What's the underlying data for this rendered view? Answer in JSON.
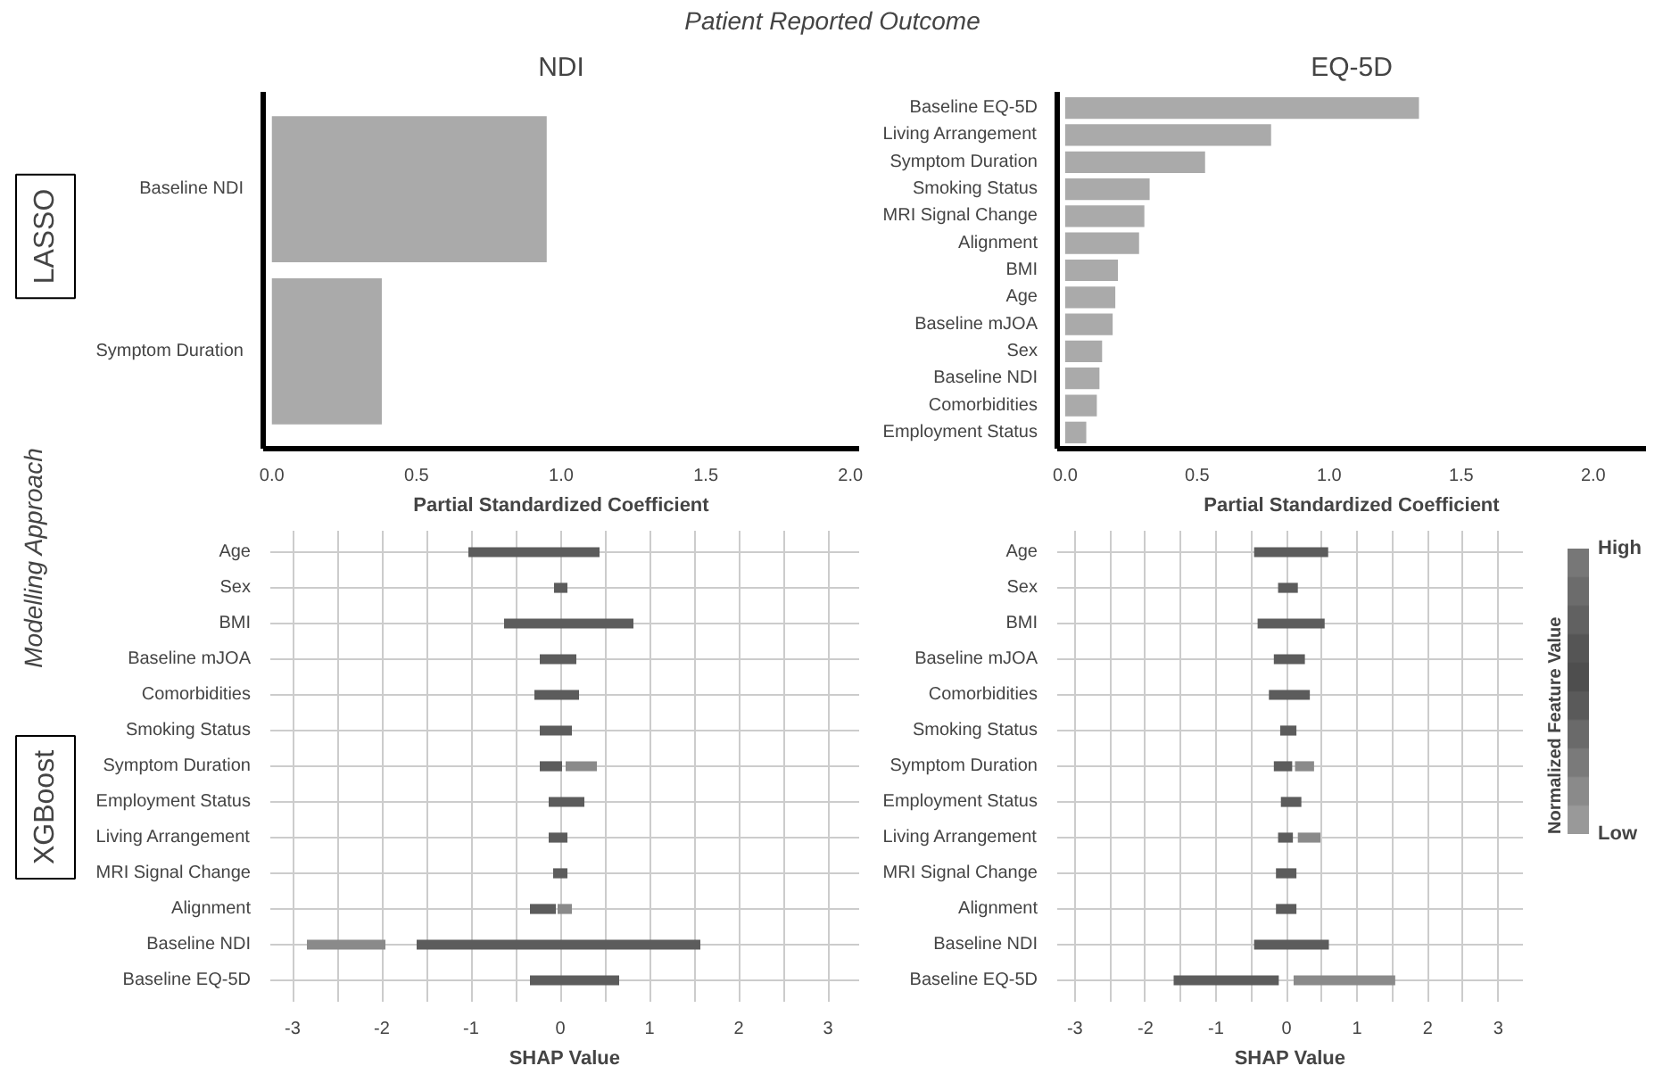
{
  "chart_data": [
    {
      "type": "bar",
      "orientation": "horizontal",
      "title": "NDI",
      "xlabel": "Partial Standardized Coefficient",
      "annotations": [
        "Patient Reported Outcome",
        "Modelling Approach",
        "LASSO"
      ],
      "categories": [
        "Baseline NDI",
        "Symptom Duration"
      ],
      "values": [
        0.95,
        0.38
      ],
      "color": "#aaaaaa",
      "xlim": [
        -0.03,
        2.03
      ],
      "xticks": [
        {
          "value": 0,
          "label": "0.0"
        },
        0.5,
        {
          "value": 1,
          "label": "1.0"
        },
        1.5,
        {
          "value": 2,
          "label": "2.0"
        }
      ],
      "grid": false
    },
    {
      "type": "bar",
      "orientation": "horizontal",
      "title": "EQ-5D",
      "xlabel": "Partial Standardized Coefficient",
      "categories": [
        "Baseline EQ-5D",
        "Living Arrangement",
        "Symptom Duration",
        "Smoking Status",
        "MRI Signal Change",
        "Alignment",
        "BMI",
        "Age",
        "Baseline mJOA",
        "Sex",
        "Baseline NDI",
        "Comorbidities",
        "Employment Status"
      ],
      "values": [
        1.34,
        0.78,
        0.53,
        0.32,
        0.3,
        0.28,
        0.2,
        0.19,
        0.18,
        0.14,
        0.13,
        0.12,
        0.08
      ],
      "color": "#aaaaaa",
      "xlim": [
        -0.03,
        2.2
      ],
      "xticks": [
        {
          "value": 0,
          "label": "0.0"
        },
        0.5,
        {
          "value": 1,
          "label": "1.0"
        },
        1.5,
        {
          "value": 2,
          "label": "2.0"
        }
      ],
      "grid": false
    },
    {
      "type": "bar",
      "orientation": "horizontal",
      "xlabel": "SHAP Value",
      "annotations": [
        "XGBoost"
      ],
      "categories": [
        "Age",
        "Sex",
        "BMI",
        "Baseline mJOA",
        "Comorbidities",
        "Smoking Status",
        "Symptom Duration",
        "Employment Status",
        "Living Arrangement",
        "MRI Signal Change",
        "Alignment",
        "Baseline NDI",
        "Baseline EQ-5D"
      ],
      "series": [
        {
          "color": "#5c5c5c",
          "base": [
            -1.03,
            -0.07,
            -0.63,
            -0.23,
            -0.29,
            -0.23,
            -0.23,
            -0.13,
            -0.13,
            -0.08,
            -0.34,
            -1.61,
            -0.34
          ],
          "values": [
            1.47,
            0.15,
            1.45,
            0.41,
            0.5,
            0.36,
            0.25,
            0.4,
            0.21,
            0.16,
            0.29,
            3.18,
            1.0
          ]
        },
        {
          "color": "#8a8a8a",
          "base": [
            null,
            null,
            null,
            null,
            null,
            null,
            0.06,
            null,
            null,
            null,
            -0.03,
            -2.84,
            null
          ],
          "values": [
            null,
            null,
            null,
            null,
            null,
            null,
            0.35,
            null,
            null,
            null,
            0.16,
            0.88,
            null
          ]
        }
      ],
      "xlim": [
        -3.25,
        3.35
      ],
      "xticks": [
        -3,
        {
          "value": -2.5,
          "label": null
        },
        -2,
        {
          "value": -1.5,
          "label": null
        },
        -1,
        {
          "value": -0.5,
          "label": null
        },
        0,
        {
          "value": 0.5,
          "label": null
        },
        1,
        {
          "value": 1.5,
          "label": null
        },
        2,
        {
          "value": 2.5,
          "label": null
        },
        3
      ],
      "grid": true
    },
    {
      "type": "bar",
      "orientation": "horizontal",
      "xlabel": "SHAP Value",
      "categories": [
        "Age",
        "Sex",
        "BMI",
        "Baseline mJOA",
        "Comorbidities",
        "Smoking Status",
        "Symptom Duration",
        "Employment Status",
        "Living Arrangement",
        "MRI Signal Change",
        "Alignment",
        "Baseline NDI",
        "Baseline EQ-5D"
      ],
      "series": [
        {
          "color": "#5c5c5c",
          "base": [
            -0.46,
            -0.12,
            -0.41,
            -0.18,
            -0.25,
            -0.09,
            -0.18,
            -0.08,
            -0.12,
            -0.15,
            -0.15,
            -0.46,
            -1.6
          ],
          "values": [
            1.05,
            0.28,
            0.95,
            0.44,
            0.58,
            0.23,
            0.26,
            0.29,
            0.21,
            0.29,
            0.29,
            1.06,
            1.49
          ]
        },
        {
          "color": "#8a8a8a",
          "base": [
            null,
            null,
            null,
            null,
            null,
            null,
            0.12,
            null,
            0.16,
            null,
            null,
            null,
            0.1
          ],
          "values": [
            null,
            null,
            null,
            null,
            null,
            null,
            0.27,
            null,
            0.32,
            null,
            null,
            null,
            1.44
          ]
        }
      ],
      "xlim": [
        -3.25,
        3.35
      ],
      "xticks": [
        -3,
        {
          "value": -2.5,
          "label": null
        },
        -2,
        {
          "value": -1.5,
          "label": null
        },
        -1,
        {
          "value": -0.5,
          "label": null
        },
        0,
        {
          "value": 0.5,
          "label": null
        },
        1,
        {
          "value": 1.5,
          "label": null
        },
        2,
        {
          "value": 2.5,
          "label": null
        },
        3
      ],
      "grid": true,
      "clabel": "Normalized Feature Value",
      "clim": [
        0,
        1
      ],
      "cticks": [
        {
          "value": 0,
          "label": "Low"
        },
        {
          "value": 1,
          "label": "High"
        }
      ]
    }
  ]
}
